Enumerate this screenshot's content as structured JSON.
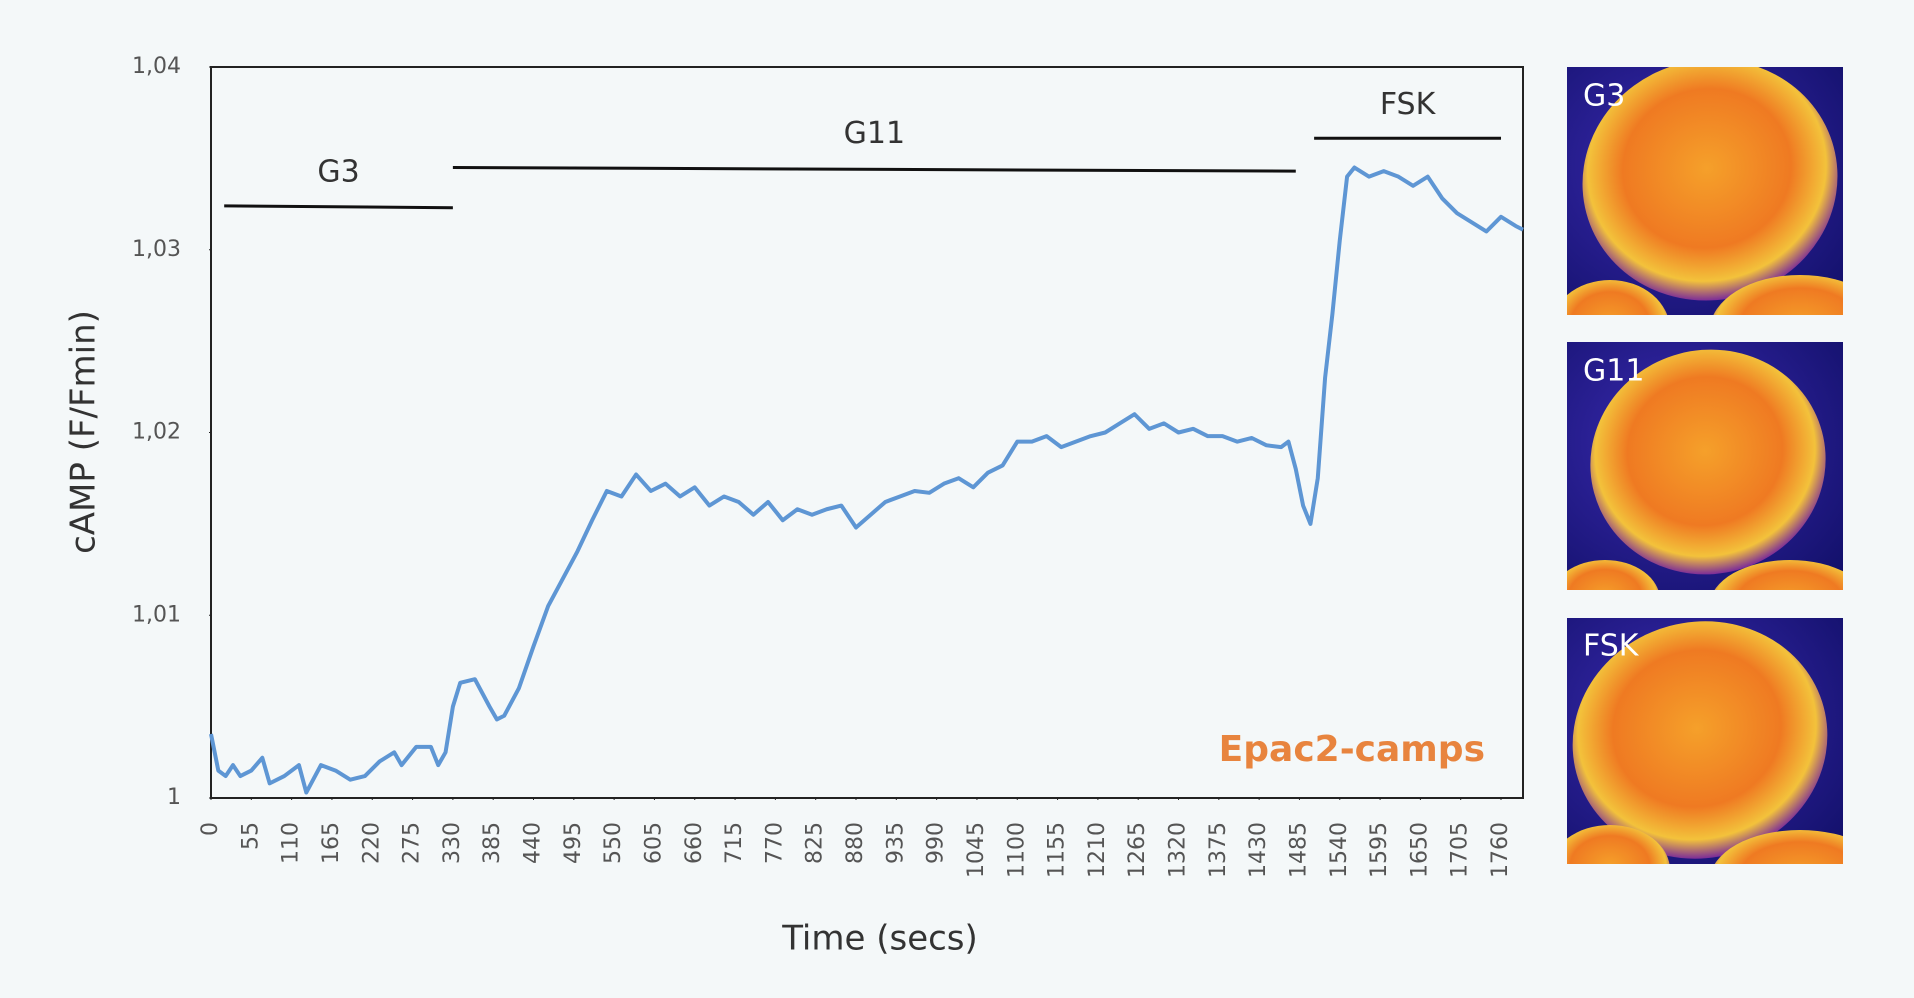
{
  "chart_data": {
    "type": "line",
    "y_label": "cAMP (F/Fmin)",
    "x_label": "Time (secs)",
    "watermark": "Epac2-camps",
    "color": "#5e96d4",
    "x": [
      0,
      10,
      20,
      30,
      40,
      55,
      70,
      80,
      100,
      120,
      130,
      150,
      170,
      190,
      210,
      230,
      250,
      260,
      280,
      300,
      310,
      320,
      330,
      340,
      360,
      380,
      390,
      400,
      420,
      440,
      460,
      480,
      500,
      520,
      540,
      560,
      580,
      600,
      620,
      640,
      660,
      680,
      700,
      720,
      740,
      760,
      780,
      800,
      820,
      840,
      860,
      880,
      900,
      920,
      940,
      960,
      980,
      1000,
      1020,
      1040,
      1060,
      1080,
      1100,
      1120,
      1140,
      1160,
      1180,
      1200,
      1220,
      1240,
      1260,
      1280,
      1300,
      1320,
      1340,
      1360,
      1380,
      1400,
      1420,
      1440,
      1460,
      1470,
      1480,
      1490,
      1500,
      1510,
      1520,
      1530,
      1540,
      1550,
      1560,
      1580,
      1600,
      1620,
      1640,
      1660,
      1680,
      1700,
      1720,
      1740,
      1760,
      1780,
      1790
    ],
    "values": [
      1.0035,
      1.0015,
      1.0012,
      1.0018,
      1.0012,
      1.0015,
      1.0022,
      1.0008,
      1.0012,
      1.0018,
      1.0003,
      1.0018,
      1.0015,
      1.001,
      1.0012,
      1.002,
      1.0025,
      1.0018,
      1.0028,
      1.0028,
      1.0018,
      1.0025,
      1.005,
      1.0063,
      1.0065,
      1.005,
      1.0043,
      1.0045,
      1.006,
      1.0083,
      1.0105,
      1.012,
      1.0135,
      1.0152,
      1.0168,
      1.0165,
      1.0177,
      1.0168,
      1.0172,
      1.0165,
      1.017,
      1.016,
      1.0165,
      1.0162,
      1.0155,
      1.0162,
      1.0152,
      1.0158,
      1.0155,
      1.0158,
      1.016,
      1.0148,
      1.0155,
      1.0162,
      1.0165,
      1.0168,
      1.0167,
      1.0172,
      1.0175,
      1.017,
      1.0178,
      1.0182,
      1.0195,
      1.0195,
      1.0198,
      1.0192,
      1.0195,
      1.0198,
      1.02,
      1.0205,
      1.021,
      1.0202,
      1.0205,
      1.02,
      1.0202,
      1.0198,
      1.0198,
      1.0195,
      1.0197,
      1.0193,
      1.0192,
      1.0195,
      1.018,
      1.016,
      1.015,
      1.0175,
      1.023,
      1.0265,
      1.0305,
      1.034,
      1.0345,
      1.034,
      1.0343,
      1.034,
      1.0335,
      1.034,
      1.0328,
      1.032,
      1.0315,
      1.031,
      1.0318,
      1.0313,
      1.0311
    ],
    "xlim": [
      0,
      1790
    ],
    "ylim": [
      1,
      1.04
    ],
    "xticks": [
      0,
      55,
      110,
      165,
      220,
      275,
      330,
      385,
      440,
      495,
      550,
      605,
      660,
      715,
      770,
      825,
      880,
      935,
      990,
      1045,
      1100,
      1155,
      1210,
      1265,
      1320,
      1375,
      1430,
      1485,
      1540,
      1595,
      1650,
      1705,
      1760
    ],
    "yticks": [
      1,
      {
        "value": 1.01,
        "label": "1,01"
      },
      {
        "value": 1.02,
        "label": "1,02"
      },
      {
        "value": 1.03,
        "label": "1,03"
      },
      {
        "value": 1.04,
        "label": "1,04"
      }
    ],
    "annotations": [
      {
        "label": "G3",
        "x": [
          18,
          330
        ],
        "y": [
          1.0324,
          1.0323
        ]
      },
      {
        "label": "G11",
        "x": [
          330,
          1480
        ],
        "y": [
          1.0345,
          1.0343
        ]
      },
      {
        "label": "FSK",
        "x": [
          1505,
          1760
        ],
        "y": [
          1.0361,
          1.0361
        ]
      }
    ],
    "image_labels": [
      "G3",
      "G11",
      "FSK"
    ]
  }
}
